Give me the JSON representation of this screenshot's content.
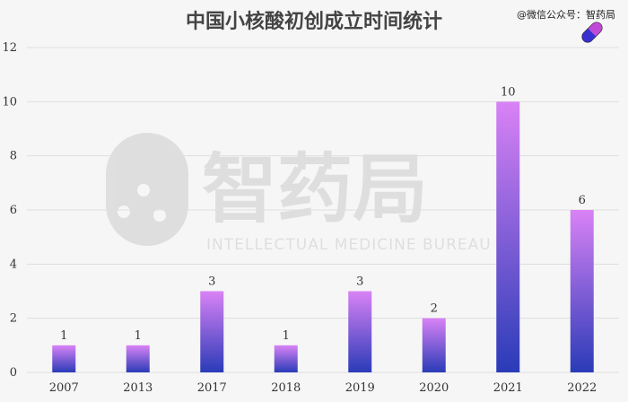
{
  "header": {
    "source": "@微信公众号：智药局"
  },
  "watermark": {
    "brand": "智药局",
    "tagline": "INTELLECTUAL MEDICINE BUREAU"
  },
  "colors": {
    "bar_top": "#d982f5",
    "bar_bottom": "#2a3bb8",
    "grid": "#dedede",
    "axis_text": "#333333"
  },
  "chart_data": {
    "type": "bar",
    "title": "中国小核酸初创成立时间统计",
    "xlabel": "",
    "ylabel": "",
    "categories": [
      "2007",
      "2013",
      "2017",
      "2018",
      "2019",
      "2020",
      "2021",
      "2022"
    ],
    "values": [
      1,
      1,
      3,
      1,
      3,
      2,
      10,
      6
    ],
    "ylim": [
      0,
      12
    ],
    "yticks": [
      0,
      2,
      4,
      6,
      8,
      10,
      12
    ],
    "grid": true,
    "data_labels": true
  }
}
